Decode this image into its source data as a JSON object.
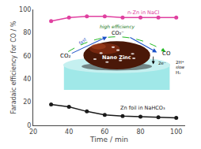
{
  "chart_data": {
    "type": "line",
    "xlabel": "Time / min",
    "ylabel": "Faradaic efficiency for CO / %",
    "x": [
      30,
      40,
      50,
      60,
      70,
      80,
      90,
      100
    ],
    "series": [
      {
        "name": "n-Zn in NaCl",
        "color": "#e040a0",
        "marker": "circle",
        "values": [
          90,
          93,
          94,
          94,
          93,
          93,
          93,
          93
        ]
      },
      {
        "name": "Zn foil in NaHCO₃",
        "color": "#1a1a1a",
        "marker": "circle",
        "values": [
          18,
          16,
          12,
          9,
          8,
          7.5,
          7,
          6.5
        ]
      }
    ],
    "xlim": [
      20,
      105
    ],
    "ylim": [
      0,
      100
    ],
    "xticks": [
      20,
      40,
      60,
      80,
      100
    ],
    "yticks": [
      0,
      20,
      40,
      60,
      80,
      100
    ],
    "grid": false,
    "annotations": [
      {
        "text": "Nano Zinc",
        "color": "#ffffff"
      },
      {
        "text": "CO₂",
        "color": "#000000"
      },
      {
        "text": "CO",
        "color": "#000000"
      },
      {
        "text": "CO₂⁻",
        "color": "#000000"
      },
      {
        "text": "high efficiency",
        "color": "#187818"
      },
      {
        "text": "fast",
        "color": "#1a50c8"
      },
      {
        "text": "2H⁺",
        "color": "#000000"
      },
      {
        "text": "slow",
        "color": "#000000"
      },
      {
        "text": "H₂",
        "color": "#000000"
      },
      {
        "text": "2e⁻",
        "color": "#000000"
      }
    ]
  }
}
